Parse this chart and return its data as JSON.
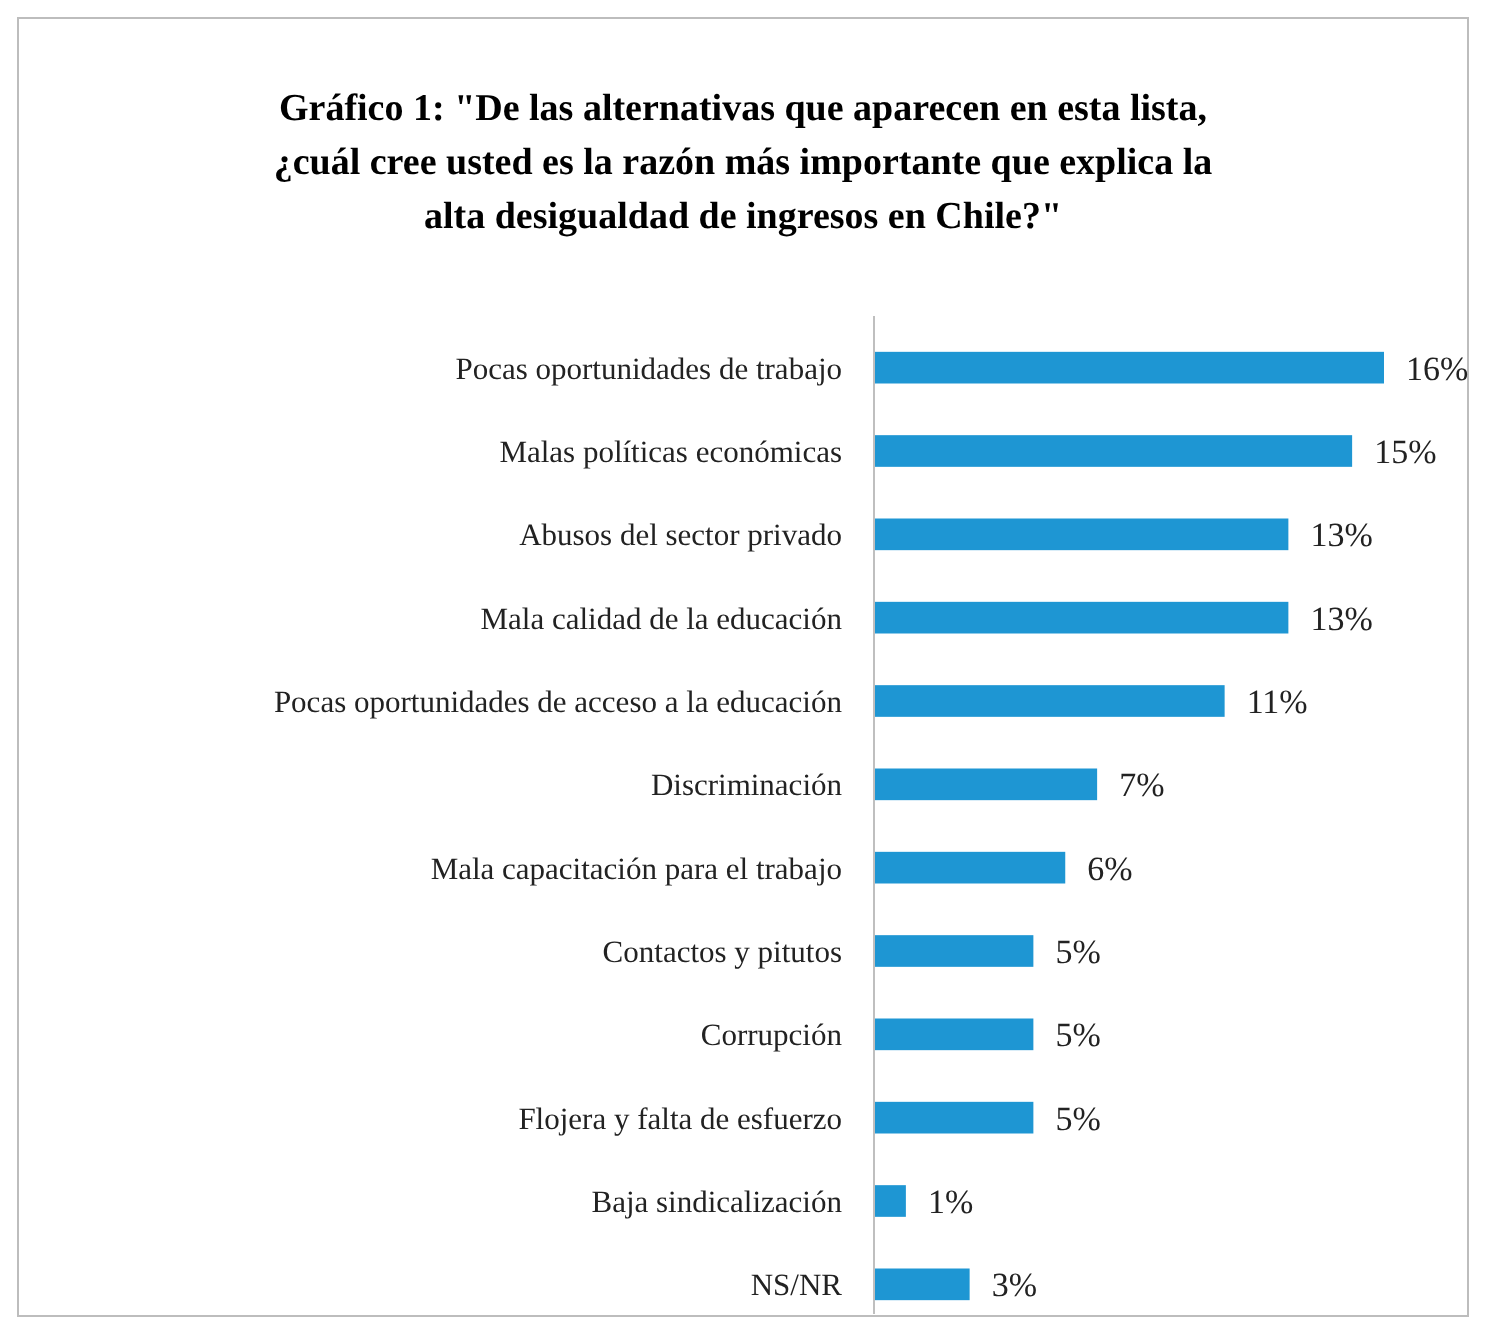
{
  "chart_data": {
    "type": "bar",
    "orientation": "horizontal",
    "title": "Gráfico 1: \"De las alternativas que aparecen en esta lista, ¿cuál cree usted es la razón más importante que explica la alta desigualdad de ingresos en Chile?\"",
    "categories": [
      "Pocas oportunidades de trabajo",
      "Malas políticas económicas",
      "Abusos del sector privado",
      "Mala calidad de la educación",
      "Pocas oportunidades de acceso a la educación",
      "Discriminación",
      "Mala capacitación para el trabajo",
      "Contactos y pitutos",
      "Corrupción",
      "Flojera y falta de esfuerzo",
      "Baja sindicalización",
      "NS/NR"
    ],
    "values": [
      16,
      15,
      13,
      13,
      11,
      7,
      6,
      5,
      5,
      5,
      1,
      3
    ],
    "value_labels": [
      "16%",
      "15%",
      "13%",
      "13%",
      "11%",
      "7%",
      "6%",
      "5%",
      "5%",
      "5%",
      "1%",
      "3%"
    ],
    "color": "#1e96d3"
  }
}
